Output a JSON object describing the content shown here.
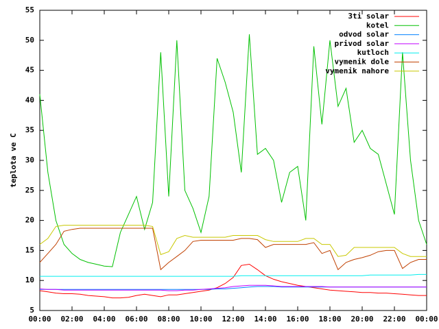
{
  "chart_data": {
    "type": "line",
    "y_label": "teplota ve C",
    "legend": "top-right",
    "x": [
      0,
      0.5,
      1,
      1.5,
      2,
      2.5,
      3,
      3.5,
      4,
      4.5,
      5,
      5.5,
      6,
      6.5,
      7,
      7.5,
      8,
      8.5,
      9,
      9.5,
      10,
      10.5,
      11,
      11.5,
      12,
      12.5,
      13,
      13.5,
      14,
      14.5,
      15,
      15.5,
      16,
      16.5,
      17,
      17.5,
      18,
      18.5,
      19,
      19.5,
      20,
      20.5,
      21,
      21.5,
      22,
      22.5,
      23,
      23.5,
      24
    ],
    "xlim": [
      0,
      24
    ],
    "xticks": [
      {
        "value": 0,
        "label": "00:00"
      },
      {
        "value": 2,
        "label": "02:00"
      },
      {
        "value": 4,
        "label": "04:00"
      },
      {
        "value": 6,
        "label": "06:00"
      },
      {
        "value": 8,
        "label": "08:00"
      },
      {
        "value": 10,
        "label": "10:00"
      },
      {
        "value": 12,
        "label": "12:00"
      },
      {
        "value": 14,
        "label": "14:00"
      },
      {
        "value": 16,
        "label": "16:00"
      },
      {
        "value": 18,
        "label": "18:00"
      },
      {
        "value": 20,
        "label": "20:00"
      },
      {
        "value": 22,
        "label": "22:00"
      },
      {
        "value": 24,
        "label": "00:00"
      }
    ],
    "ylim": [
      5,
      55
    ],
    "yticks": [
      5,
      10,
      15,
      20,
      25,
      30,
      35,
      40,
      45,
      50,
      55
    ],
    "series": [
      {
        "name": "3ti solar",
        "color": "#ff0000",
        "values": [
          8.3,
          8.1,
          7.9,
          7.8,
          7.8,
          7.7,
          7.5,
          7.4,
          7.3,
          7.1,
          7.1,
          7.2,
          7.5,
          7.7,
          7.5,
          7.3,
          7.6,
          7.6,
          7.8,
          8.0,
          8.2,
          8.4,
          8.8,
          9.5,
          10.5,
          12.5,
          12.7,
          11.8,
          10.8,
          10.2,
          9.8,
          9.5,
          9.2,
          9.0,
          8.8,
          8.6,
          8.4,
          8.3,
          8.2,
          8.1,
          8.0,
          8.0,
          7.9,
          7.9,
          7.8,
          7.7,
          7.6,
          7.5,
          7.5
        ]
      },
      {
        "name": "kotel",
        "color": "#00c000",
        "values": [
          41,
          28,
          20,
          16,
          14.5,
          13.5,
          13,
          12.7,
          12.4,
          12.3,
          18,
          21,
          24,
          18.5,
          23,
          48,
          24,
          50,
          25,
          22,
          18,
          24,
          47,
          43,
          38,
          28,
          51,
          31,
          32,
          30,
          23,
          28,
          29,
          20,
          49,
          36,
          50,
          39,
          42,
          33,
          35,
          32,
          31,
          26,
          21,
          48,
          30,
          20,
          16
        ]
      },
      {
        "name": "odvod solar",
        "color": "#0080ff",
        "values": [
          8.5,
          8.5,
          8.5,
          8.5,
          8.5,
          8.5,
          8.5,
          8.5,
          8.5,
          8.5,
          8.5,
          8.5,
          8.5,
          8.5,
          8.5,
          8.5,
          8.5,
          8.5,
          8.5,
          8.5,
          8.5,
          8.5,
          8.6,
          8.6,
          8.7,
          8.8,
          8.9,
          9.0,
          9.0,
          9.0,
          8.9,
          8.9,
          8.9,
          8.9,
          8.9,
          8.9,
          8.9,
          8.9,
          8.9,
          8.9,
          8.9,
          8.9,
          8.9,
          8.9,
          8.9,
          8.9,
          8.9,
          8.9,
          8.9
        ]
      },
      {
        "name": "privod solar",
        "color": "#c000ff",
        "values": [
          8.6,
          8.5,
          8.5,
          8.4,
          8.4,
          8.4,
          8.4,
          8.4,
          8.4,
          8.4,
          8.4,
          8.4,
          8.4,
          8.4,
          8.4,
          8.4,
          8.3,
          8.3,
          8.4,
          8.4,
          8.5,
          8.6,
          8.7,
          8.8,
          9.0,
          9.1,
          9.2,
          9.2,
          9.2,
          9.1,
          9.0,
          9.0,
          9.0,
          9.0,
          9.0,
          9.0,
          8.9,
          8.9,
          8.9,
          8.9,
          8.9,
          8.9,
          8.9,
          8.9,
          8.9,
          8.9,
          8.9,
          8.9,
          8.9
        ]
      },
      {
        "name": "kutloch",
        "color": "#00eeee",
        "values": [
          10.7,
          10.7,
          10.7,
          10.7,
          10.7,
          10.7,
          10.7,
          10.7,
          10.7,
          10.7,
          10.7,
          10.7,
          10.7,
          10.7,
          10.7,
          10.7,
          10.7,
          10.7,
          10.7,
          10.7,
          10.7,
          10.7,
          10.7,
          10.7,
          10.7,
          10.8,
          10.8,
          10.8,
          10.8,
          10.8,
          10.8,
          10.8,
          10.8,
          10.8,
          10.8,
          10.8,
          10.8,
          10.8,
          10.8,
          10.8,
          10.8,
          10.9,
          10.9,
          10.9,
          10.9,
          10.9,
          10.9,
          11.0,
          11.0
        ]
      },
      {
        "name": "vymenik dole",
        "color": "#c04000",
        "values": [
          13,
          14.5,
          16,
          18.2,
          18.5,
          18.7,
          18.7,
          18.7,
          18.7,
          18.7,
          18.7,
          18.7,
          18.7,
          18.7,
          18.7,
          11.8,
          13,
          14,
          15,
          16.5,
          16.7,
          16.7,
          16.7,
          16.7,
          16.7,
          17,
          17,
          16.8,
          15.5,
          16,
          16,
          16,
          16,
          16,
          16.3,
          14.5,
          15,
          11.8,
          13,
          13.5,
          13.8,
          14.2,
          14.8,
          15,
          15,
          12,
          13,
          13.5,
          13.5
        ]
      },
      {
        "name": "vymenik nahore",
        "color": "#c8c800",
        "values": [
          16,
          17,
          19,
          19.2,
          19.2,
          19.2,
          19.2,
          19.2,
          19.2,
          19.2,
          19.2,
          19.2,
          19.2,
          19.2,
          19,
          14.3,
          14.8,
          17,
          17.5,
          17.2,
          17.2,
          17.2,
          17.2,
          17.2,
          17.5,
          17.5,
          17.5,
          17.5,
          16.8,
          16.5,
          16.5,
          16.5,
          16.5,
          17,
          17,
          16,
          16,
          14,
          14.2,
          15.5,
          15.5,
          15.5,
          15.5,
          15.5,
          15.5,
          14.5,
          14,
          14,
          14
        ]
      }
    ]
  }
}
